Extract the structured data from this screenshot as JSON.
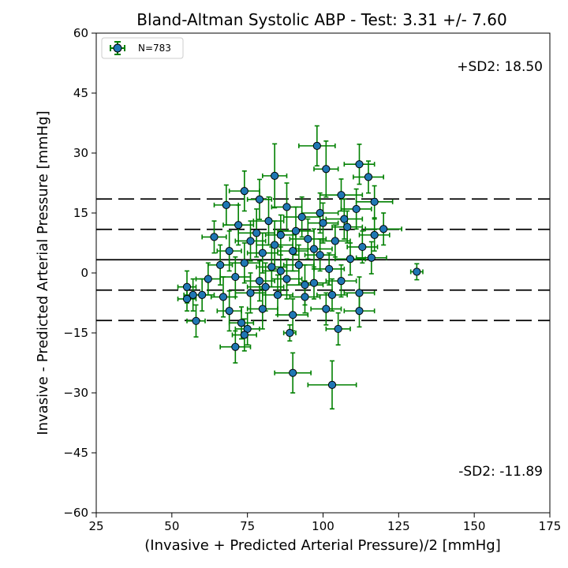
{
  "chart_data": {
    "type": "scatter",
    "title": "Bland-Altman Systolic ABP - Test: 3.31 +/- 7.60",
    "xlabel": "(Invasive + Predicted Arterial Pressure)/2 [mmHg]",
    "ylabel": "Invasive - Predicted Arterial Pressure [mmHg]",
    "xlim": [
      25,
      175
    ],
    "ylim": [
      -60,
      60
    ],
    "xticks": [
      25,
      50,
      75,
      100,
      125,
      150,
      175
    ],
    "yticks": [
      -60,
      -45,
      -30,
      -15,
      0,
      15,
      30,
      45,
      60
    ],
    "grid": false,
    "legend": {
      "label": "N=783",
      "placement": "top-left"
    },
    "reference_lines": [
      {
        "y": 18.5,
        "style": "dashed"
      },
      {
        "y": 10.9,
        "style": "dashed"
      },
      {
        "y": 3.31,
        "style": "solid"
      },
      {
        "y": -4.29,
        "style": "dashed"
      },
      {
        "y": -11.89,
        "style": "dashed"
      }
    ],
    "annotations": [
      {
        "text": "+SD2: 18.50",
        "placement": "upper-right"
      },
      {
        "text": "-SD2: -11.89",
        "placement": "lower-right"
      }
    ],
    "marker_color": "#1f77b4",
    "error_bar_color": "#008000",
    "points": [
      {
        "x": 98,
        "y": 31.8,
        "xerr": 6,
        "yerr": 5
      },
      {
        "x": 112,
        "y": 27.2,
        "xerr": 5,
        "yerr": 5
      },
      {
        "x": 101,
        "y": 26.0,
        "xerr": 4,
        "yerr": 7
      },
      {
        "x": 84,
        "y": 24.3,
        "xerr": 4,
        "yerr": 8
      },
      {
        "x": 115,
        "y": 24.0,
        "xerr": 5,
        "yerr": 4
      },
      {
        "x": 74,
        "y": 20.5,
        "xerr": 5,
        "yerr": 5
      },
      {
        "x": 106,
        "y": 19.5,
        "xerr": 7,
        "yerr": 4
      },
      {
        "x": 68,
        "y": 17.0,
        "xerr": 4,
        "yerr": 5
      },
      {
        "x": 117,
        "y": 17.8,
        "xerr": 6,
        "yerr": 4
      },
      {
        "x": 111,
        "y": 16.0,
        "xerr": 5,
        "yerr": 5
      },
      {
        "x": 88,
        "y": 16.5,
        "xerr": 5,
        "yerr": 6
      },
      {
        "x": 79,
        "y": 18.4,
        "xerr": 4,
        "yerr": 5
      },
      {
        "x": 120,
        "y": 11.0,
        "xerr": 6,
        "yerr": 4
      },
      {
        "x": 117,
        "y": 9.5,
        "xerr": 5,
        "yerr": 4
      },
      {
        "x": 64,
        "y": 9.0,
        "xerr": 4,
        "yerr": 4
      },
      {
        "x": 72,
        "y": 12.0,
        "xerr": 5,
        "yerr": 5
      },
      {
        "x": 82,
        "y": 13.0,
        "xerr": 5,
        "yerr": 6
      },
      {
        "x": 93,
        "y": 14.0,
        "xerr": 6,
        "yerr": 5
      },
      {
        "x": 100,
        "y": 12.5,
        "xerr": 5,
        "yerr": 5
      },
      {
        "x": 108,
        "y": 11.5,
        "xerr": 5,
        "yerr": 4
      },
      {
        "x": 76,
        "y": 8.0,
        "xerr": 5,
        "yerr": 5
      },
      {
        "x": 86,
        "y": 9.5,
        "xerr": 5,
        "yerr": 5
      },
      {
        "x": 95,
        "y": 8.5,
        "xerr": 6,
        "yerr": 5
      },
      {
        "x": 104,
        "y": 8.0,
        "xerr": 5,
        "yerr": 4
      },
      {
        "x": 113,
        "y": 6.5,
        "xerr": 5,
        "yerr": 4
      },
      {
        "x": 69,
        "y": 5.5,
        "xerr": 4,
        "yerr": 5
      },
      {
        "x": 80,
        "y": 5.0,
        "xerr": 5,
        "yerr": 5
      },
      {
        "x": 90,
        "y": 5.5,
        "xerr": 5,
        "yerr": 5
      },
      {
        "x": 99,
        "y": 4.5,
        "xerr": 5,
        "yerr": 4
      },
      {
        "x": 109,
        "y": 3.5,
        "xerr": 5,
        "yerr": 4
      },
      {
        "x": 116,
        "y": 3.8,
        "xerr": 5,
        "yerr": 4
      },
      {
        "x": 66,
        "y": 2.0,
        "xerr": 4,
        "yerr": 5
      },
      {
        "x": 74,
        "y": 2.5,
        "xerr": 5,
        "yerr": 5
      },
      {
        "x": 83,
        "y": 1.5,
        "xerr": 5,
        "yerr": 5
      },
      {
        "x": 92,
        "y": 2.0,
        "xerr": 5,
        "yerr": 5
      },
      {
        "x": 102,
        "y": 1.0,
        "xerr": 5,
        "yerr": 4
      },
      {
        "x": 131,
        "y": 0.3,
        "xerr": 2,
        "yerr": 2
      },
      {
        "x": 62,
        "y": -1.5,
        "xerr": 4,
        "yerr": 4
      },
      {
        "x": 71,
        "y": -1.0,
        "xerr": 5,
        "yerr": 5
      },
      {
        "x": 79,
        "y": -2.0,
        "xerr": 5,
        "yerr": 5
      },
      {
        "x": 88,
        "y": -1.5,
        "xerr": 5,
        "yerr": 5
      },
      {
        "x": 97,
        "y": -2.5,
        "xerr": 5,
        "yerr": 4
      },
      {
        "x": 106,
        "y": -2.0,
        "xerr": 5,
        "yerr": 4
      },
      {
        "x": 55,
        "y": -3.5,
        "xerr": 3,
        "yerr": 4
      },
      {
        "x": 57,
        "y": -5.5,
        "xerr": 3,
        "yerr": 4
      },
      {
        "x": 55,
        "y": -6.5,
        "xerr": 3,
        "yerr": 3
      },
      {
        "x": 60,
        "y": -5.5,
        "xerr": 4,
        "yerr": 4
      },
      {
        "x": 67,
        "y": -6.0,
        "xerr": 4,
        "yerr": 5
      },
      {
        "x": 76,
        "y": -5.0,
        "xerr": 5,
        "yerr": 5
      },
      {
        "x": 85,
        "y": -5.5,
        "xerr": 5,
        "yerr": 5
      },
      {
        "x": 94,
        "y": -6.0,
        "xerr": 5,
        "yerr": 4
      },
      {
        "x": 103,
        "y": -5.5,
        "xerr": 5,
        "yerr": 4
      },
      {
        "x": 112,
        "y": -5.0,
        "xerr": 5,
        "yerr": 4
      },
      {
        "x": 69,
        "y": -9.5,
        "xerr": 4,
        "yerr": 5
      },
      {
        "x": 80,
        "y": -9.0,
        "xerr": 5,
        "yerr": 5
      },
      {
        "x": 90,
        "y": -10.5,
        "xerr": 5,
        "yerr": 4
      },
      {
        "x": 101,
        "y": -9.0,
        "xerr": 5,
        "yerr": 4
      },
      {
        "x": 112,
        "y": -9.5,
        "xerr": 5,
        "yerr": 4
      },
      {
        "x": 58,
        "y": -12.0,
        "xerr": 3,
        "yerr": 4
      },
      {
        "x": 73,
        "y": -12.5,
        "xerr": 4,
        "yerr": 4
      },
      {
        "x": 75,
        "y": -14.0,
        "xerr": 4,
        "yerr": 4
      },
      {
        "x": 74,
        "y": -15.5,
        "xerr": 4,
        "yerr": 4
      },
      {
        "x": 89,
        "y": -15.0,
        "xerr": 2,
        "yerr": 2
      },
      {
        "x": 105,
        "y": -14.0,
        "xerr": 4,
        "yerr": 4
      },
      {
        "x": 71,
        "y": -18.5,
        "xerr": 5,
        "yerr": 4
      },
      {
        "x": 90,
        "y": -25.0,
        "xerr": 6,
        "yerr": 5
      },
      {
        "x": 103,
        "y": -28.0,
        "xerr": 8,
        "yerr": 6
      },
      {
        "x": 78,
        "y": 10.0,
        "xerr": 6,
        "yerr": 6
      },
      {
        "x": 84,
        "y": 7.0,
        "xerr": 6,
        "yerr": 6
      },
      {
        "x": 91,
        "y": 10.5,
        "xerr": 6,
        "yerr": 6
      },
      {
        "x": 97,
        "y": 6.0,
        "xerr": 6,
        "yerr": 5
      },
      {
        "x": 86,
        "y": 0.5,
        "xerr": 6,
        "yerr": 6
      },
      {
        "x": 94,
        "y": -3.0,
        "xerr": 6,
        "yerr": 5
      },
      {
        "x": 81,
        "y": -3.5,
        "xerr": 6,
        "yerr": 6
      },
      {
        "x": 99,
        "y": 15.0,
        "xerr": 6,
        "yerr": 5
      },
      {
        "x": 107,
        "y": 13.5,
        "xerr": 6,
        "yerr": 5
      }
    ]
  }
}
